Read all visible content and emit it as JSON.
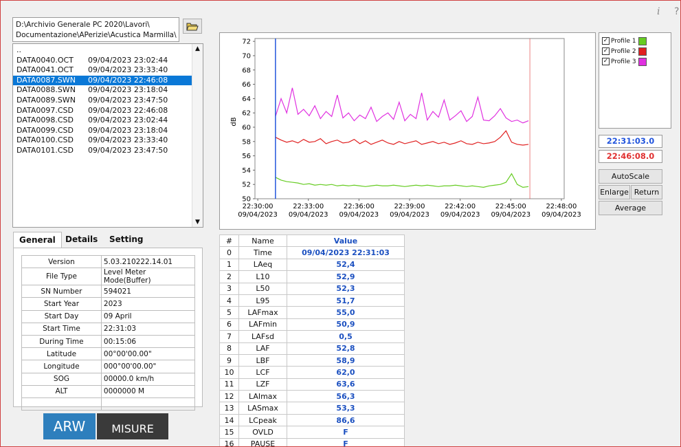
{
  "toolbar": {
    "info": "i",
    "help": "?"
  },
  "path": [
    "D:\\Archivio Generale PC 2020\\Lavori\\",
    "Documentazione\\APerizie\\Acustica Marmilla\\"
  ],
  "files": {
    "parent": "..",
    "selected": 2,
    "rows": [
      [
        "DATA0040.OCT",
        "09/04/2023 23:02:44"
      ],
      [
        "DATA0041.OCT",
        "09/04/2023 23:33:40"
      ],
      [
        "DATA0087.SWN",
        "09/04/2023 22:46:08"
      ],
      [
        "DATA0088.SWN",
        "09/04/2023 23:18:04"
      ],
      [
        "DATA0089.SWN",
        "09/04/2023 23:47:50"
      ],
      [
        "DATA0097.CSD",
        "09/04/2023 22:46:08"
      ],
      [
        "DATA0098.CSD",
        "09/04/2023 23:02:44"
      ],
      [
        "DATA0099.CSD",
        "09/04/2023 23:18:04"
      ],
      [
        "DATA0100.CSD",
        "09/04/2023 23:33:40"
      ],
      [
        "DATA0101.CSD",
        "09/04/2023 23:47:50"
      ]
    ]
  },
  "tabs": [
    "General",
    "Details",
    "Setting"
  ],
  "info": [
    [
      "Version",
      "5.03.210222.14.01"
    ],
    [
      "File Type",
      "Level Meter Mode(Buffer)"
    ],
    [
      "SN Number",
      "594021"
    ],
    [
      "Start Year",
      "2023"
    ],
    [
      "Start Day",
      "09 April"
    ],
    [
      "Start Time",
      "22:31:03"
    ],
    [
      "During Time",
      "00:15:06"
    ],
    [
      "Latitude",
      "00°00'00.00\""
    ],
    [
      "Longitude",
      "000°00'00.00\""
    ],
    [
      "SOG",
      "00000.0 km/h"
    ],
    [
      "ALT",
      "0000000 M"
    ]
  ],
  "logos": [
    "ARW",
    "MISURE"
  ],
  "chart_data": {
    "type": "line",
    "ylabel": "dB",
    "ylim": [
      50,
      72.4
    ],
    "yticks": [
      50,
      52,
      54,
      56,
      58,
      60,
      62,
      64,
      66,
      68,
      70,
      72
    ],
    "xlim": [
      80990,
      82090
    ],
    "xticks": [
      {
        "value": 81000,
        "label": "22:30:00"
      },
      {
        "value": 81180,
        "label": "22:33:00"
      },
      {
        "value": 81360,
        "label": "22:36:00"
      },
      {
        "value": 81540,
        "label": "22:39:00"
      },
      {
        "value": 81720,
        "label": "22:42:00"
      },
      {
        "value": 81900,
        "label": "22:45:00"
      },
      {
        "value": 82080,
        "label": "22:48:00"
      }
    ],
    "xtick_dates": [
      "09/04/2023",
      "09/04/2023",
      "09/04/2023",
      "09/04/2023",
      "09/04/2023",
      "09/04/2023",
      "09/04/2023"
    ],
    "grid": false,
    "x": [
      81063,
      81083,
      81103,
      81123,
      81143,
      81163,
      81183,
      81203,
      81223,
      81243,
      81263,
      81283,
      81303,
      81323,
      81343,
      81363,
      81383,
      81403,
      81423,
      81443,
      81463,
      81483,
      81503,
      81523,
      81543,
      81563,
      81583,
      81603,
      81623,
      81643,
      81663,
      81683,
      81703,
      81723,
      81743,
      81763,
      81783,
      81803,
      81823,
      81843,
      81863,
      81883,
      81903,
      81923,
      81943,
      81963
    ],
    "series": [
      {
        "name": "Profile 1",
        "color": "#66cc22",
        "values": [
          53.0,
          52.6,
          52.4,
          52.3,
          52.2,
          52.0,
          52.1,
          51.9,
          52.0,
          51.9,
          52.0,
          51.8,
          51.9,
          51.8,
          51.9,
          51.8,
          51.7,
          51.8,
          51.9,
          51.8,
          51.8,
          51.9,
          51.8,
          51.7,
          51.8,
          51.9,
          51.8,
          51.9,
          51.8,
          51.7,
          51.8,
          51.8,
          51.9,
          51.8,
          51.7,
          51.8,
          51.7,
          51.6,
          51.8,
          51.9,
          52.0,
          52.3,
          53.5,
          52.0,
          51.6,
          51.7
        ]
      },
      {
        "name": "Profile 2",
        "color": "#e02020",
        "values": [
          58.6,
          58.2,
          57.9,
          58.1,
          57.8,
          58.3,
          57.9,
          58.0,
          58.4,
          57.7,
          58.0,
          58.2,
          57.8,
          57.9,
          58.3,
          57.7,
          58.1,
          57.6,
          57.9,
          58.2,
          57.8,
          57.6,
          58.0,
          57.7,
          57.9,
          58.1,
          57.6,
          57.8,
          58.0,
          57.7,
          57.9,
          57.6,
          57.8,
          58.1,
          57.7,
          57.6,
          57.9,
          57.7,
          57.8,
          58.0,
          58.6,
          59.5,
          57.9,
          57.6,
          57.5,
          57.6
        ]
      },
      {
        "name": "Profile 3",
        "color": "#e030e0",
        "values": [
          61.5,
          64.0,
          62.0,
          65.5,
          61.8,
          62.5,
          61.6,
          63.0,
          61.2,
          62.2,
          61.5,
          64.5,
          61.3,
          62.0,
          60.9,
          61.7,
          61.2,
          62.8,
          60.8,
          61.5,
          62.0,
          61.1,
          63.5,
          60.9,
          61.8,
          61.2,
          64.8,
          61.0,
          62.2,
          61.4,
          63.8,
          61.0,
          61.6,
          62.3,
          60.8,
          61.5,
          64.2,
          61.0,
          60.9,
          61.6,
          62.6,
          61.3,
          60.8,
          61.0,
          60.6,
          60.9
        ]
      }
    ],
    "cursors": [
      {
        "value": 81063,
        "label": "22:31:03.0",
        "color": "#2255dd"
      },
      {
        "value": 81968,
        "label": "22:46:08.0",
        "color": "#e03030"
      }
    ]
  },
  "buttons": [
    "AutoScale",
    "Enlarge",
    "Return",
    "Average"
  ],
  "table": {
    "columns": [
      "#",
      "Name",
      "Value"
    ],
    "rows": [
      [
        0,
        "Time",
        "09/04/2023 22:31:03"
      ],
      [
        1,
        "LAeq",
        "52,4"
      ],
      [
        2,
        "L10",
        "52,9"
      ],
      [
        3,
        "L50",
        "52,3"
      ],
      [
        4,
        "L95",
        "51,7"
      ],
      [
        5,
        "LAFmax",
        "55,0"
      ],
      [
        6,
        "LAFmin",
        "50,9"
      ],
      [
        7,
        "LAFsd",
        "0,5"
      ],
      [
        8,
        "LAF",
        "52,8"
      ],
      [
        9,
        "LBF",
        "58,9"
      ],
      [
        10,
        "LCF",
        "62,0"
      ],
      [
        11,
        "LZF",
        "63,6"
      ],
      [
        12,
        "LAImax",
        "56,3"
      ],
      [
        13,
        "LASmax",
        "53,3"
      ],
      [
        14,
        "LCpeak",
        "86,6"
      ],
      [
        15,
        "OVLD",
        "F"
      ],
      [
        16,
        "PAUSE",
        "F"
      ]
    ]
  }
}
